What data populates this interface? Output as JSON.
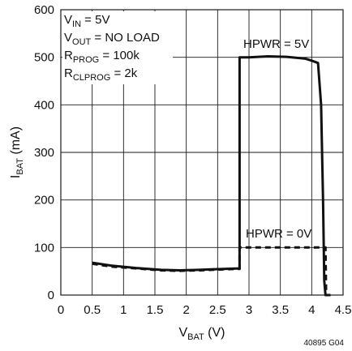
{
  "chart_data": {
    "type": "line",
    "xlabel": {
      "main": "V",
      "sub": "BAT",
      "unit": " (V)"
    },
    "ylabel": {
      "main": "I",
      "sub": "BAT",
      "unit": " (mA)"
    },
    "xlim": [
      0,
      4.5
    ],
    "ylim": [
      0,
      600
    ],
    "x_ticks": [
      "0",
      "0.5",
      "1",
      "1.5",
      "2",
      "2.5",
      "3",
      "3.5",
      "4",
      "4.5"
    ],
    "y_ticks": [
      "0",
      "100",
      "200",
      "300",
      "400",
      "500",
      "600"
    ],
    "grid": true,
    "conditions": [
      {
        "main": "V",
        "sub": "IN",
        "rest": " = 5V"
      },
      {
        "main": "V",
        "sub": "OUT",
        "rest": " = NO LOAD"
      },
      {
        "main": "R",
        "sub": "PROG",
        "rest": " = 100k"
      },
      {
        "main": "R",
        "sub": "CLPROG",
        "rest": " = 2k"
      }
    ],
    "figure_id": "40895 G04",
    "series": [
      {
        "name": "HPWR = 5V",
        "style": "solid",
        "x": [
          0.5,
          0.8,
          1.2,
          1.6,
          1.9,
          2.2,
          2.6,
          2.85,
          2.85,
          3.0,
          3.3,
          3.6,
          3.9,
          4.0,
          4.1,
          4.15,
          4.18,
          4.2,
          4.22,
          4.23,
          4.3
        ],
        "y": [
          68,
          62,
          57,
          53,
          52,
          53,
          55,
          56,
          500,
          500,
          502,
          501,
          497,
          493,
          488,
          400,
          200,
          30,
          0,
          0,
          0
        ]
      },
      {
        "name": "HPWR = 0V",
        "style": "dashed",
        "x": [
          0.5,
          0.8,
          1.2,
          1.6,
          1.9,
          2.2,
          2.6,
          2.85,
          2.85,
          3.0,
          3.5,
          4.0,
          4.2,
          4.22,
          4.23,
          4.3
        ],
        "y": [
          66,
          60,
          56,
          52,
          51,
          52,
          54,
          55,
          100,
          100,
          100,
          100,
          100,
          100,
          0,
          0
        ]
      }
    ]
  }
}
